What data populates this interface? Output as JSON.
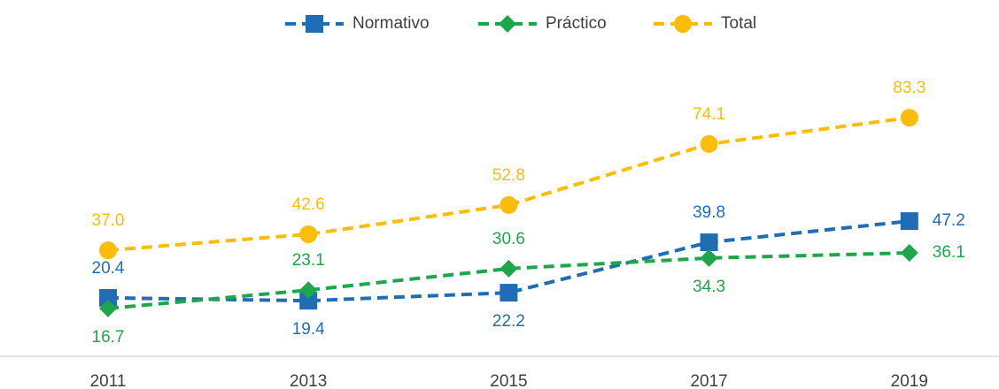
{
  "chart_data": {
    "type": "line",
    "categories": [
      "2011",
      "2013",
      "2015",
      "2017",
      "2019"
    ],
    "ylim": [
      0,
      100
    ],
    "series": [
      {
        "name": "Normativo",
        "color": "#1f6db5",
        "marker": "square",
        "values": [
          20.4,
          19.4,
          22.2,
          39.8,
          47.2
        ]
      },
      {
        "name": "Práctico",
        "color": "#1ea64b",
        "marker": "diamond",
        "values": [
          16.7,
          23.1,
          30.6,
          34.3,
          36.1
        ]
      },
      {
        "name": "Total",
        "color": "#fbbd08",
        "marker": "circle",
        "values": [
          37,
          42.6,
          52.8,
          74.1,
          83.3
        ],
        "value_labels": [
          "37.0",
          "42.6",
          "52.8",
          "74.1",
          "83.3"
        ]
      }
    ]
  }
}
